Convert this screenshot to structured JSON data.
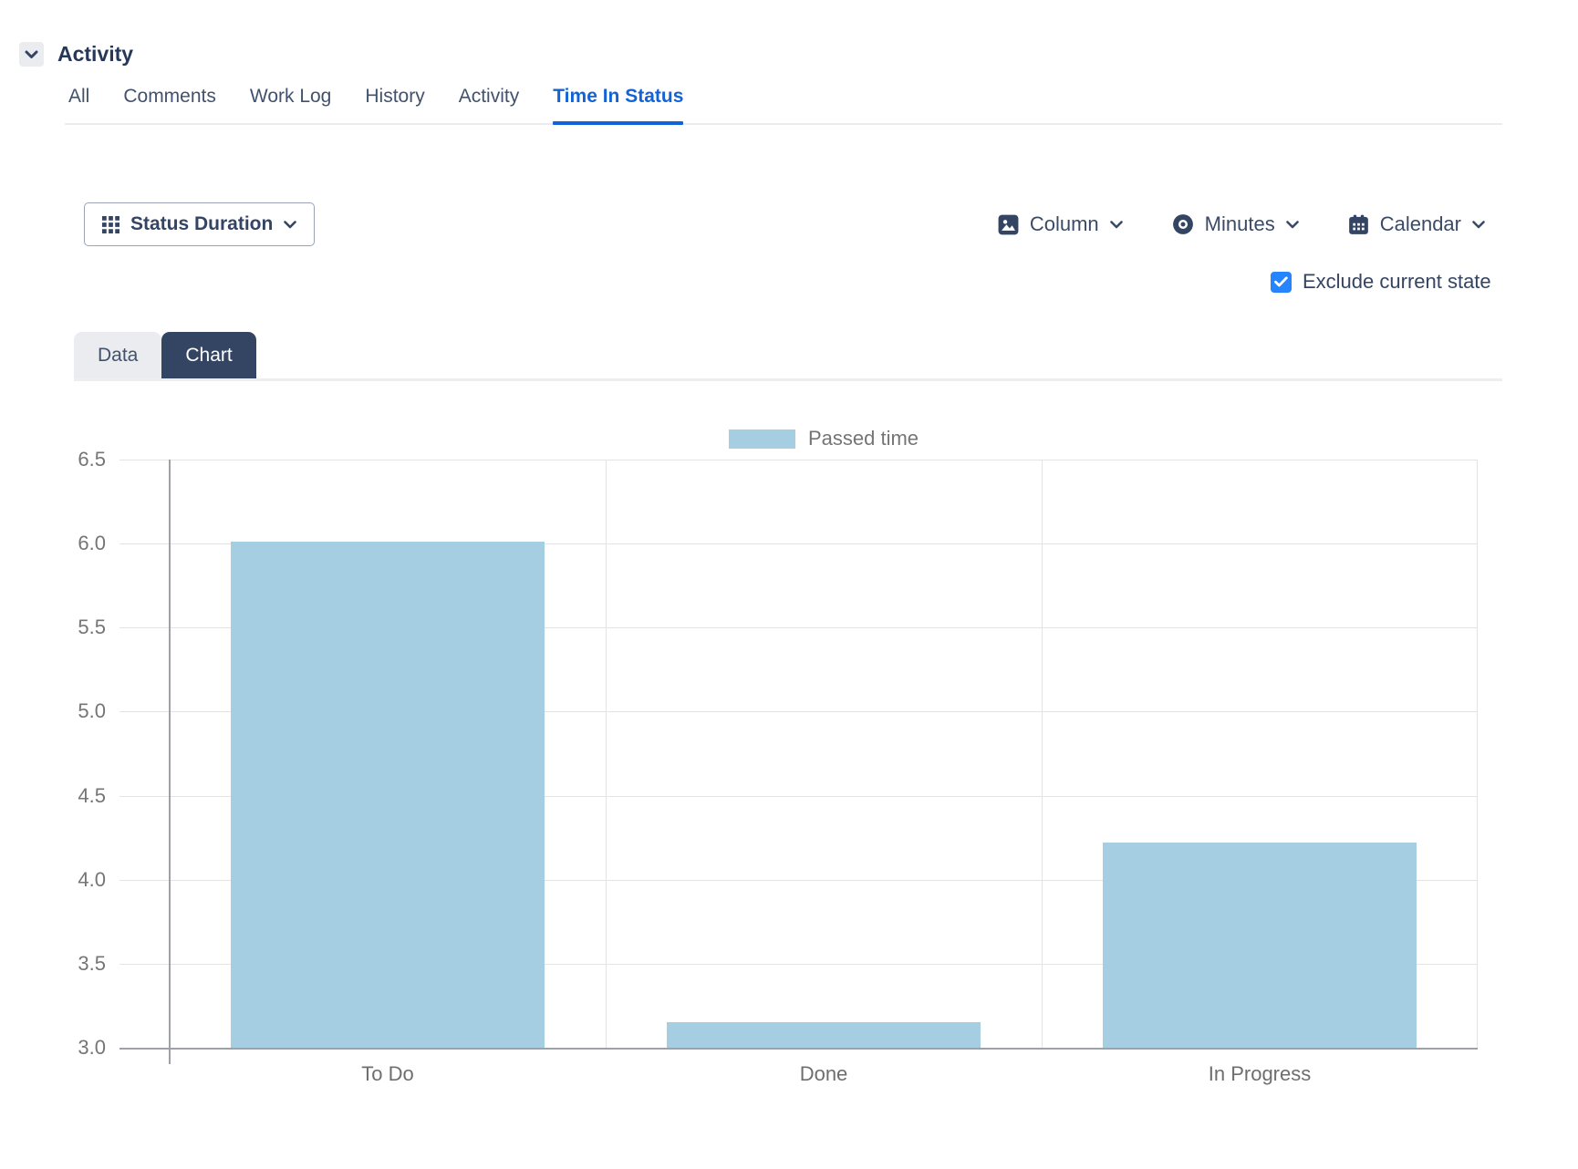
{
  "header": {
    "title": "Activity",
    "collapse_icon": "chevron-down-icon"
  },
  "activity_tabs": {
    "items": [
      {
        "label": "All",
        "active": false
      },
      {
        "label": "Comments",
        "active": false
      },
      {
        "label": "Work Log",
        "active": false
      },
      {
        "label": "History",
        "active": false
      },
      {
        "label": "Activity",
        "active": false
      },
      {
        "label": "Time In Status",
        "active": true
      }
    ]
  },
  "toolbar": {
    "report_type": {
      "label": "Status Duration",
      "icon": "grid-icon"
    },
    "chart_type": {
      "label": "Column",
      "icon": "image-icon"
    },
    "time_unit": {
      "label": "Minutes",
      "icon": "eye-icon"
    },
    "calendar": {
      "label": "Calendar",
      "icon": "calendar-icon"
    },
    "exclude_current_state": {
      "label": "Exclude current state",
      "checked": true
    }
  },
  "view_tabs": {
    "items": [
      {
        "label": "Data",
        "active": false
      },
      {
        "label": "Chart",
        "active": true
      }
    ]
  },
  "chart_data": {
    "type": "bar",
    "title": "",
    "categories": [
      "To Do",
      "Done",
      "In Progress"
    ],
    "series": [
      {
        "name": "Passed time",
        "color": "#A6CEE3",
        "values": [
          6.01,
          3.15,
          4.22
        ]
      }
    ],
    "legend": {
      "position": "top",
      "label": "Passed time"
    },
    "xlabel": "",
    "ylabel": "",
    "ylim": [
      3.0,
      6.5
    ],
    "ytick_step": 0.5,
    "ytick_decimals": 1,
    "grid": true,
    "bar_width_ratio": 0.72
  },
  "colors": {
    "active_tab_blue": "#1262D8",
    "checkbox_blue": "#2684FF",
    "navy_text": "#344563",
    "dark_tab_bg": "#344563",
    "muted_tab_bg": "#EBECF0",
    "bar_fill": "#A6CEE3",
    "axis_text": "#757575",
    "gridline": "#E3E3E3",
    "axis_line": "#9EA2A8"
  }
}
